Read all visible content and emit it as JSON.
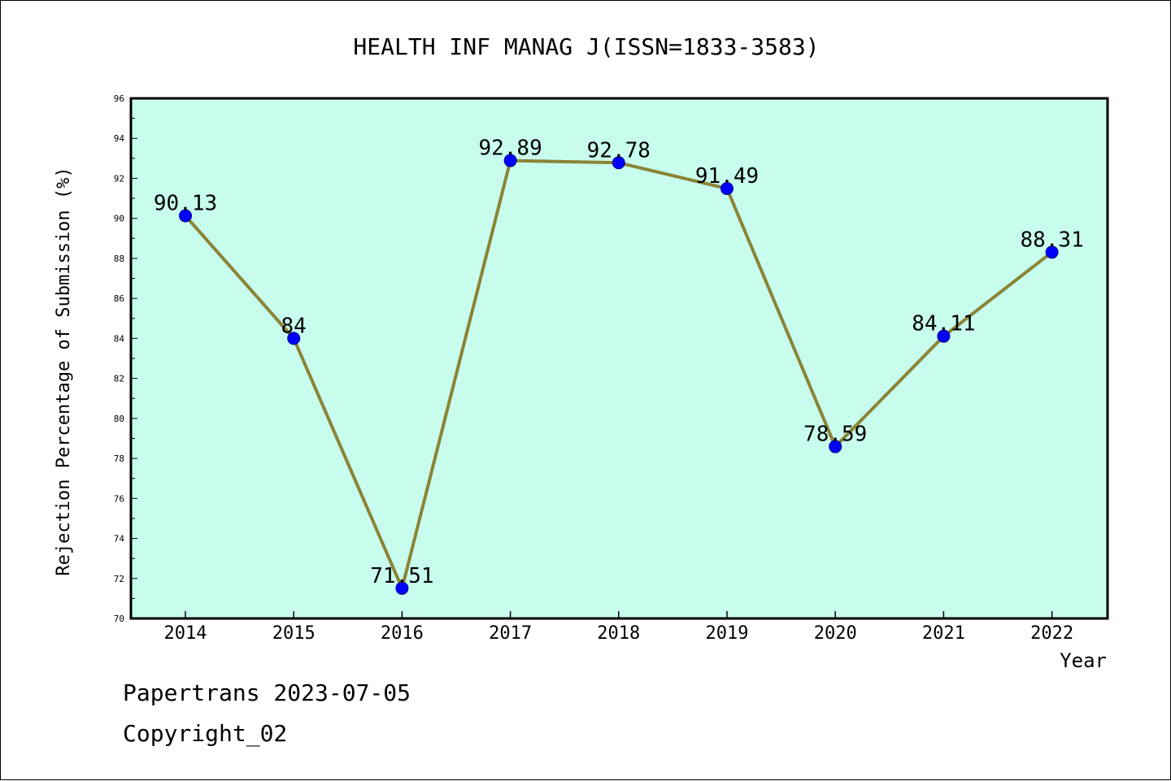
{
  "chart_data": {
    "type": "line",
    "title": "HEALTH INF MANAG J(ISSN=1833-3583)",
    "xlabel": "Year",
    "ylabel": "Rejection Percentage of Submission (%)",
    "categories": [
      "2014",
      "2015",
      "2016",
      "2017",
      "2018",
      "2019",
      "2020",
      "2021",
      "2022"
    ],
    "values": [
      90.13,
      84,
      71.51,
      92.89,
      92.78,
      91.49,
      78.59,
      84.11,
      88.31
    ],
    "data_labels": [
      "90.13",
      "84",
      "71.51",
      "92.89",
      "92.78",
      "91.49",
      "78.59",
      "84.11",
      "88.31"
    ],
    "ylim": [
      70,
      96
    ],
    "yticks": [
      70,
      72,
      74,
      76,
      78,
      80,
      82,
      84,
      86,
      88,
      90,
      92,
      94,
      96
    ],
    "grid": false,
    "legend": "none",
    "colors": {
      "plot_background": "#c8fdee",
      "line": "#8b8436",
      "marker": "#0000ff",
      "axes": "#000000"
    }
  },
  "footer": {
    "line1": "Papertrans 2023-07-05",
    "line2": "Copyright_02"
  }
}
